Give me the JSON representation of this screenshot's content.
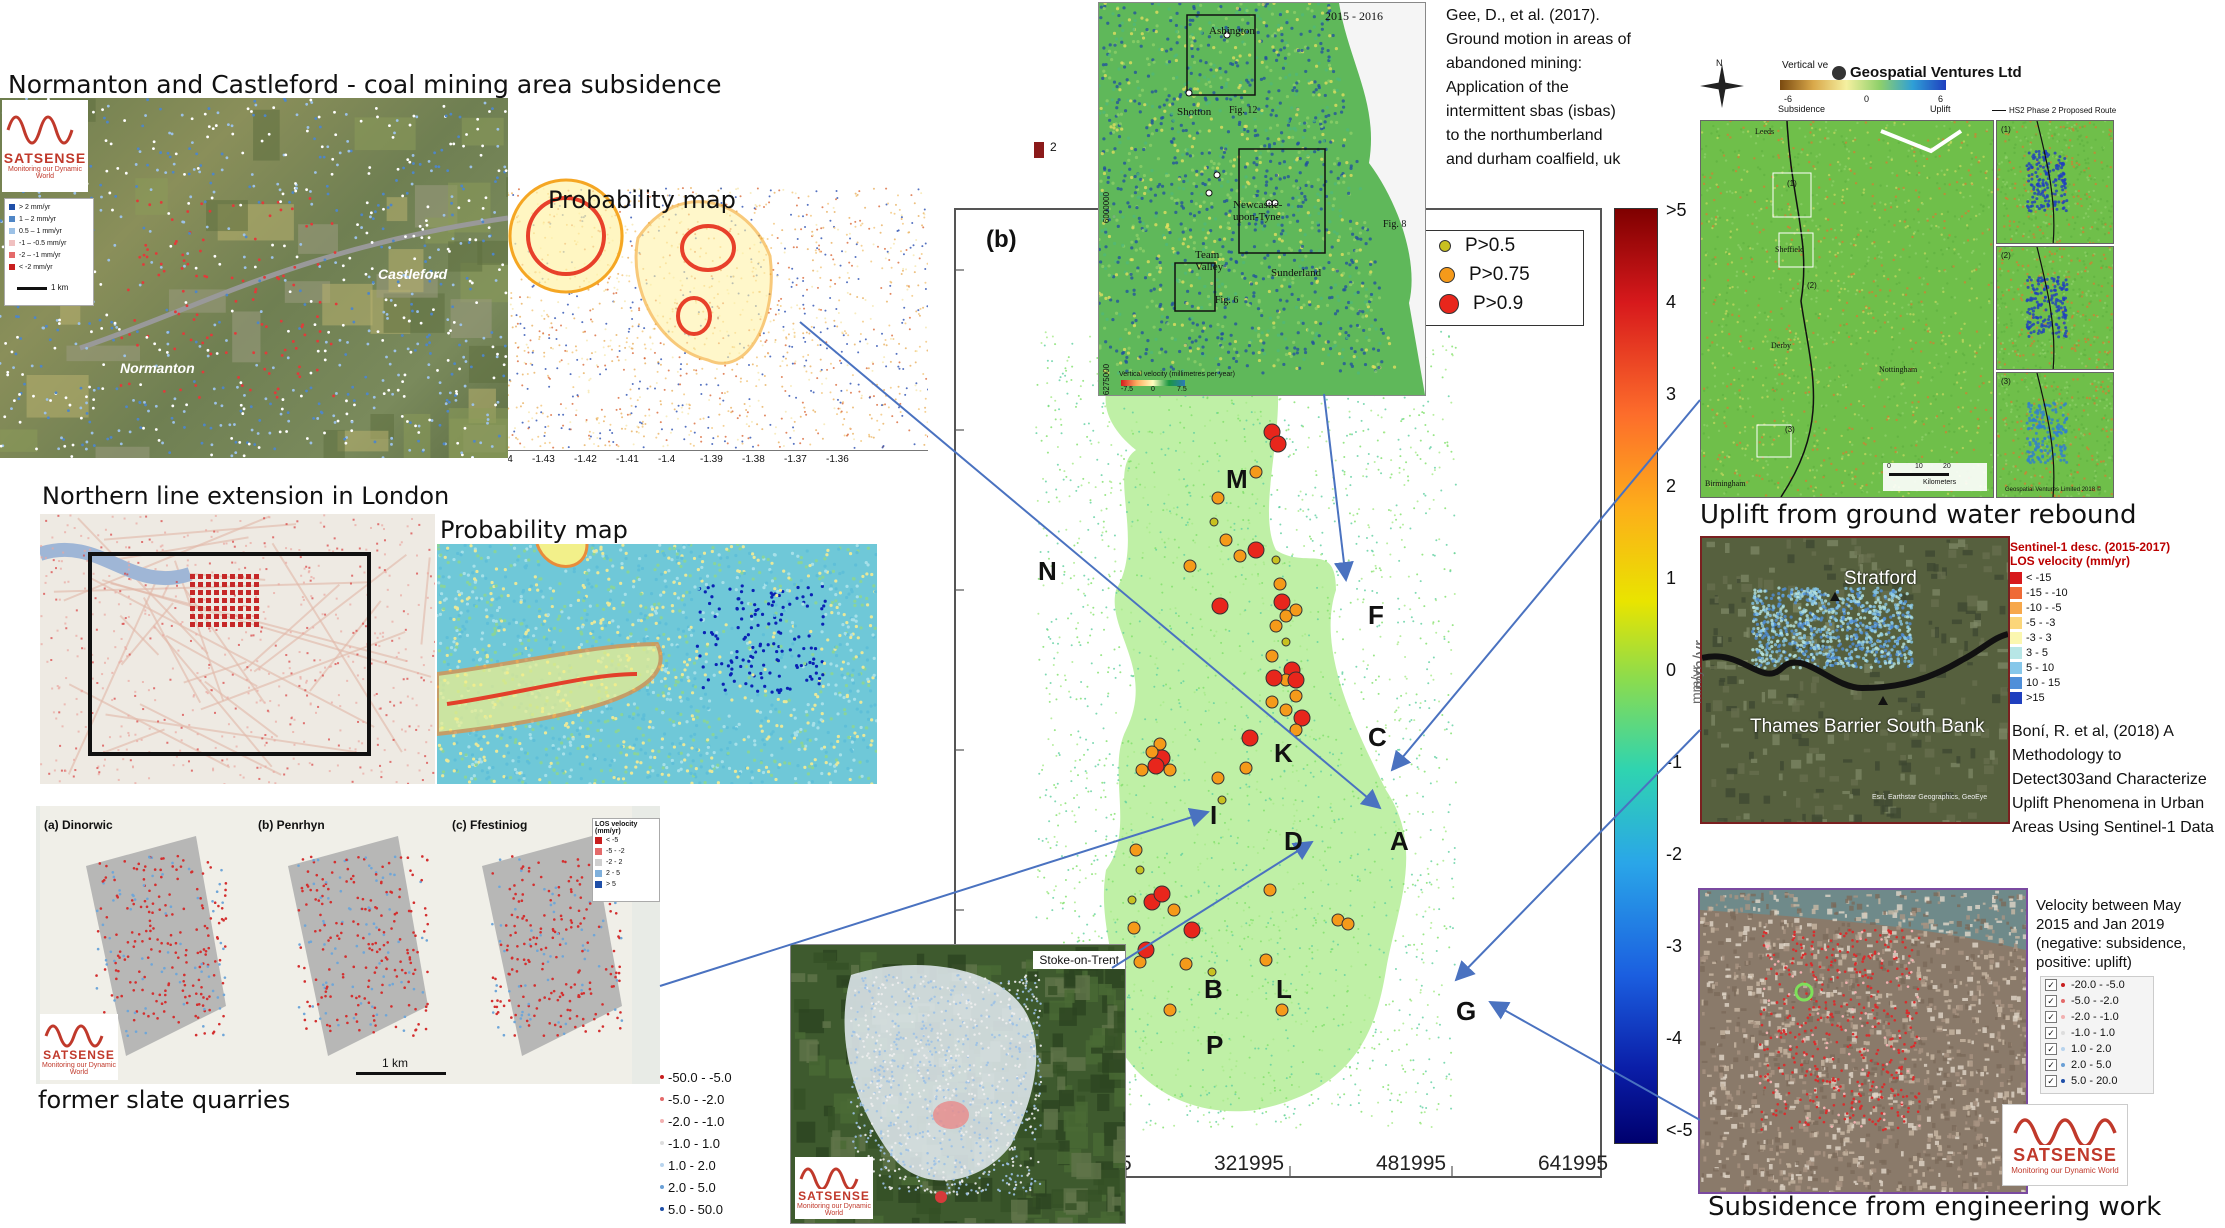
{
  "captions": {
    "normanton_title": "Normanton and Castleford - coal mining area subsidence",
    "probability_map_1": "Probability map",
    "northern_line_title": "Northern line extension in London",
    "probability_map_2": "Probability map",
    "slate_title": "former slate quarries",
    "uplift_title": "Uplift from ground water rebound",
    "subsidence_title": "Subsidence from engineering work"
  },
  "satsense": {
    "word": "SATSENSE",
    "tagline": "Monitoring our Dynamic World"
  },
  "normanton": {
    "legend": [
      {
        "label": "> 2 mm/yr",
        "color": "#1f4fa8"
      },
      {
        "label": "1 – 2 mm/yr",
        "color": "#4f86c6"
      },
      {
        "label": "0.5 – 1 mm/yr",
        "color": "#9cc1e6"
      },
      {
        "label": "-1 – -0.5 mm/yr",
        "color": "#f0c0c0"
      },
      {
        "label": "-2 – -1 mm/yr",
        "color": "#e46a6a"
      },
      {
        "label": "< -2 mm/yr",
        "color": "#c81e1e"
      }
    ],
    "scale": "1 km",
    "place_castleford": "Castleford",
    "place_normanton": "Normanton"
  },
  "probability_map_top": {
    "x_ticks": [
      "-1.44",
      "-1.43",
      "-1.42",
      "-1.41",
      "-1.4",
      "-1.39",
      "-1.38",
      "-1.37",
      "-1.36"
    ],
    "corner_label": "2"
  },
  "north_east_map": {
    "period": "2015 - 2016",
    "places": [
      "Ashington",
      "Shotton",
      "Newcastle-upon-Tyne",
      "Team Valley",
      "Sunderland"
    ],
    "fig_labels": [
      "Fig. 12",
      "Fig. 8",
      "Fig. 6"
    ],
    "y_ticks": [
      "6000000",
      "6275000"
    ],
    "colorbar_label": "Vertical velocity (millimetres per year)",
    "colorbar_ticks": [
      "-7.5",
      "0",
      "7.5"
    ]
  },
  "reference_top": {
    "lines": [
      "Gee, D., et al. (2017).",
      "Ground motion in areas of",
      "abandoned mining:",
      "Application of the",
      "intermittent sbas (isbas)",
      "to the northumberland",
      "and durham coalfield, uk"
    ]
  },
  "main_map": {
    "panel_label": "(b)",
    "legend": [
      {
        "label": "P>0.5",
        "color": "#c8c020",
        "size": 5
      },
      {
        "label": "P>0.75",
        "color": "#f59a1a",
        "size": 7
      },
      {
        "label": "P>0.9",
        "color": "#e8261c",
        "size": 9
      }
    ],
    "x_ticks": [
      "5",
      "321995",
      "481995",
      "641995"
    ],
    "site_letters": [
      "M",
      "N",
      "F",
      "K",
      "C",
      "I",
      "D",
      "A",
      "B",
      "L",
      "P",
      "G"
    ],
    "colorbar_ticks": [
      ">5",
      "4",
      "3",
      "2",
      "1",
      "0",
      "-1",
      "-2",
      "-3",
      "-4",
      "<-5"
    ],
    "colorbar_unit": "mm/yr"
  },
  "stoke": {
    "label": "Stoke-on-Trent"
  },
  "slate": {
    "panels": [
      "(a) Dinorwic",
      "(b) Penrhyn",
      "(c) Ffestiniog"
    ],
    "legend_title": "LOS velocity (mm/yr)",
    "legend": [
      {
        "label": "< -5",
        "color": "#c81e1e"
      },
      {
        "label": "-5 - -2",
        "color": "#e46a6a"
      },
      {
        "label": "-2 - 2",
        "color": "#cfcfcf"
      },
      {
        "label": "2 - 5",
        "color": "#7fb0dc"
      },
      {
        "label": "> 5",
        "color": "#1f4fa8"
      }
    ],
    "scale": "1 km"
  },
  "stoke_legend": [
    {
      "label": "-50.0 - -5.0",
      "color": "#c81e1e"
    },
    {
      "label": "-5.0 - -2.0",
      "color": "#e46a6a"
    },
    {
      "label": "-2.0 - -1.0",
      "color": "#f2b0b0"
    },
    {
      "label": "-1.0 - 1.0",
      "color": "#dddddd"
    },
    {
      "label": "1.0 - 2.0",
      "color": "#b8d4ee"
    },
    {
      "label": "2.0 - 5.0",
      "color": "#6aa0d6"
    },
    {
      "label": "5.0 - 50.0",
      "color": "#1f4fa8"
    }
  ],
  "hs2": {
    "title_left": "Vertical ve",
    "company": "Geospatial Ventures Ltd",
    "cb_ticks": [
      "-6",
      "0",
      "6"
    ],
    "cb_left": "Subsidence",
    "cb_right": "Uplift",
    "route_label": "HS2 Phase 2 Proposed Route",
    "places": [
      "Leeds",
      "Sheffield",
      "Derby",
      "Nottingham",
      "Birmingham"
    ],
    "insets": [
      "(1)",
      "(2)",
      "(3)"
    ],
    "inset_tags": [
      "(1)",
      "(2)",
      "(3)"
    ],
    "scale_ticks": [
      "0",
      "10",
      "20"
    ],
    "scale_unit": "Kilometers",
    "copyright": "Geospatial Ventures Limited 2018 ©",
    "north": "N"
  },
  "thames": {
    "places": [
      "Stratford",
      "Thames Barrier South Bank"
    ],
    "legend_title_1": "Sentinel-1 desc. (2015-2017)",
    "legend_title_2": "LOS velocity (mm/yr)",
    "legend": [
      {
        "label": "< -15",
        "color": "#d7191c"
      },
      {
        "label": "-15 - -10",
        "color": "#ef6a36"
      },
      {
        "label": "-10 - -5",
        "color": "#f7a84b"
      },
      {
        "label": "-5 - -3",
        "color": "#fbd67a"
      },
      {
        "label": "-3 - 3",
        "color": "#fbf7b0"
      },
      {
        "label": "3 - 5",
        "color": "#b7e6e6"
      },
      {
        "label": "5 - 10",
        "color": "#86c7ea"
      },
      {
        "label": "10 - 15",
        "color": "#4f8fd9"
      },
      {
        "label": ">15",
        "color": "#1f3fbf"
      }
    ],
    "side_label": "mm/yr",
    "attribution": "Esri, Earthstar Geographics, GeoEye"
  },
  "reference_bottom": {
    "lines": [
      "Boní, R. et al, (2018) A",
      "Methodology to",
      "Detect303and Characterize",
      "Uplift Phenomena in Urban",
      "Areas Using Sentinel-1 Data"
    ]
  },
  "engineering": {
    "note_lines": [
      "Velocity between May",
      "2015 and Jan 2019",
      "(negative: subsidence,",
      "positive: uplift)"
    ],
    "legend": [
      {
        "label": "-20.0 - -5.0",
        "color": "#c81e1e"
      },
      {
        "label": "-5.0 - -2.0",
        "color": "#e46a6a"
      },
      {
        "label": "-2.0 - -1.0",
        "color": "#f2b0b0"
      },
      {
        "label": "-1.0 - 1.0",
        "color": "#dddddd"
      },
      {
        "label": "1.0 - 2.0",
        "color": "#b8d4ee"
      },
      {
        "label": "2.0 - 5.0",
        "color": "#6aa0d6"
      },
      {
        "label": "5.0 - 20.0",
        "color": "#1f4fa8"
      }
    ]
  }
}
